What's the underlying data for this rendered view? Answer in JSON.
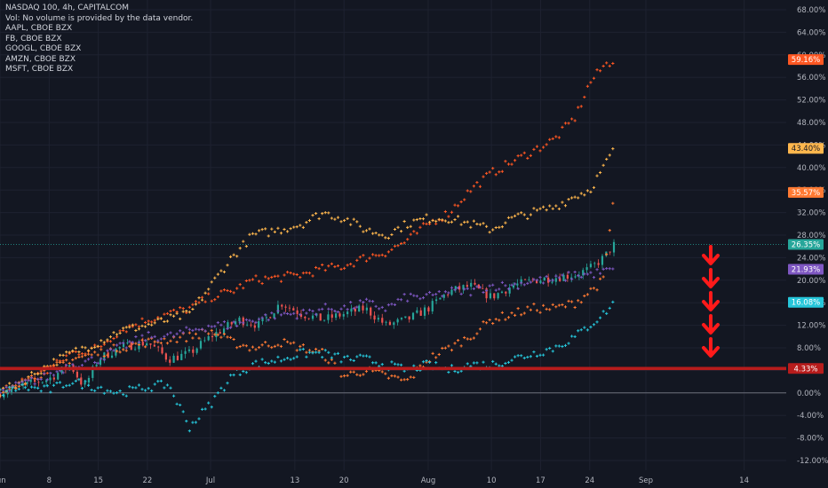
{
  "legend": {
    "main": "NASDAQ 100, 4h, CAPITALCOM",
    "vol": "Vol: No volume is provided by the data vendor.",
    "items": [
      "AAPL, CBOE BZX",
      "FB, CBOE BZX",
      "GOOGL, CBOE BZX",
      "AMZN, CBOE BZX",
      "MSFT, CBOE BZX"
    ]
  },
  "chart_data": {
    "type": "line",
    "y_axis": {
      "ticks": [
        "68.00%",
        "64.00%",
        "60.00%",
        "56.00%",
        "52.00%",
        "48.00%",
        "44.00%",
        "40.00%",
        "36.00%",
        "32.00%",
        "28.00%",
        "24.00%",
        "20.00%",
        "16.00%",
        "12.00%",
        "8.00%",
        "4.00%",
        "0.00%",
        "-4.00%",
        "-8.00%",
        "-12.00%"
      ],
      "tick_values": [
        68,
        64,
        60,
        56,
        52,
        48,
        44,
        40,
        36,
        32,
        28,
        24,
        20,
        16,
        12,
        8,
        4,
        0,
        -4,
        -8,
        -12
      ],
      "ylim": [
        -13,
        70
      ]
    },
    "x_axis": {
      "ticks": [
        "Jun",
        "8",
        "15",
        "22",
        "Jul",
        "13",
        "20",
        "Aug",
        "10",
        "17",
        "24",
        "Sep",
        "14"
      ],
      "tick_days": [
        0,
        7,
        14,
        21,
        30,
        42,
        49,
        61,
        70,
        77,
        84,
        92,
        106
      ],
      "xlim": [
        0,
        112
      ]
    },
    "series": [
      {
        "role": "main",
        "color": "#26a69a",
        "color_down": "#ef5350",
        "last_label": "26.35%",
        "last_value": 26.35,
        "days": [
          0,
          4,
          7,
          10,
          12,
          14,
          17,
          21,
          24,
          27,
          30,
          34,
          37,
          40,
          43,
          46,
          49,
          52,
          55,
          58,
          61,
          64,
          67,
          70,
          73,
          76,
          79,
          82,
          84,
          86,
          87.5
        ],
        "values": [
          0,
          1.5,
          2.5,
          5,
          1,
          6,
          8,
          9,
          6,
          7,
          10,
          13,
          12,
          16,
          14,
          13,
          14,
          15,
          12,
          13,
          15,
          18,
          19,
          17,
          19,
          20,
          20.5,
          21,
          22,
          24,
          26.35
        ]
      },
      {
        "role": "AAPL",
        "color": "#ff5722",
        "last_label": "59.16%",
        "last_value": 59.16,
        "days": [
          0,
          3,
          7,
          10,
          14,
          17,
          21,
          24,
          27,
          30,
          33,
          36,
          40,
          43,
          46,
          49,
          52,
          55,
          58,
          61,
          64,
          67,
          70,
          73,
          76,
          79,
          82,
          84,
          86,
          87.5
        ],
        "values": [
          0,
          2,
          4,
          7,
          8,
          11,
          13,
          14,
          15,
          17,
          18,
          20,
          20.5,
          21,
          22,
          22.5,
          24,
          25,
          27,
          30,
          32,
          36,
          39,
          41,
          43,
          45,
          49,
          55,
          58,
          59.16
        ]
      },
      {
        "role": "FB",
        "color": "#ffb74d",
        "last_label": "43.40%",
        "last_value": 43.4,
        "days": [
          0,
          3,
          7,
          10,
          14,
          17,
          21,
          24,
          27,
          30,
          33,
          36,
          40,
          43,
          46,
          49,
          52,
          55,
          58,
          61,
          64,
          67,
          70,
          73,
          76,
          79,
          82,
          84,
          86,
          87.5
        ],
        "values": [
          0,
          2,
          5,
          7,
          9,
          11,
          12,
          13,
          14,
          19,
          24,
          28,
          29,
          30,
          32,
          31,
          29,
          28,
          30,
          31,
          31,
          30,
          29,
          31,
          32,
          33,
          35,
          36,
          40,
          43.4
        ]
      },
      {
        "role": "GOOGL",
        "color": "#ff7a33",
        "last_label": "35.57%",
        "last_value": 35.57,
        "days": [
          0,
          3,
          7,
          10,
          14,
          17,
          21,
          24,
          27,
          30,
          33,
          36,
          40,
          43,
          46,
          49,
          52,
          55,
          58,
          61,
          64,
          67,
          70,
          73,
          76,
          79,
          82,
          84,
          86,
          87.5
        ],
        "values": [
          0,
          2,
          4,
          6,
          7,
          8,
          9,
          9.5,
          10,
          11,
          9,
          8,
          9,
          8,
          7,
          3,
          4,
          3,
          2,
          6,
          8,
          10,
          13,
          14,
          15,
          15,
          16,
          18,
          20,
          35.57
        ]
      },
      {
        "role": "AMZN",
        "color": "#7e57c2",
        "last_label": "21.93%",
        "last_value": 21.93,
        "days": [
          0,
          3,
          7,
          10,
          14,
          17,
          21,
          24,
          27,
          30,
          33,
          36,
          40,
          43,
          46,
          49,
          52,
          55,
          58,
          61,
          64,
          67,
          70,
          73,
          76,
          79,
          82,
          84,
          86,
          87.5
        ],
        "values": [
          0,
          1.5,
          3,
          5,
          6,
          8,
          10,
          10,
          11,
          12,
          12,
          13,
          14,
          14,
          15,
          15,
          16,
          15,
          17,
          17,
          18,
          18,
          19,
          19,
          20,
          20,
          21,
          21,
          21.5,
          21.93
        ]
      },
      {
        "role": "MSFT",
        "color": "#26c6da",
        "last_label": "16.08%",
        "last_value": 16.08,
        "days": [
          0,
          3,
          7,
          10,
          14,
          17,
          21,
          24,
          27,
          30,
          33,
          36,
          40,
          43,
          46,
          49,
          52,
          55,
          58,
          61,
          64,
          67,
          70,
          73,
          76,
          79,
          82,
          84,
          86,
          87.5
        ],
        "values": [
          0,
          1,
          0.5,
          2,
          1,
          0,
          1,
          1.5,
          -6,
          -2,
          3,
          5,
          6,
          7,
          7,
          6,
          6,
          5,
          4,
          5,
          4,
          5,
          5,
          6,
          7,
          8,
          10,
          12,
          14,
          16.08
        ]
      }
    ],
    "horizontal_line": {
      "value": 4.33,
      "label": "4.33%",
      "color": "#b71c1c"
    },
    "zero_line": 0,
    "arrows": {
      "count": 5,
      "color": "#ff1a1a",
      "direction": "down"
    },
    "grid": true
  }
}
